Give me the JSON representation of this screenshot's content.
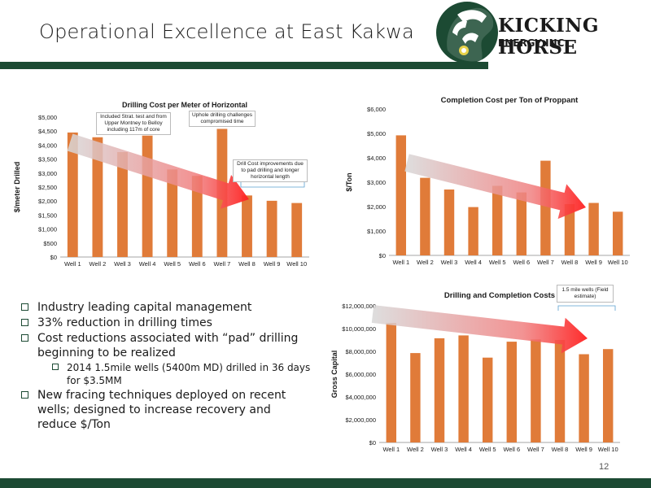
{
  "slide": {
    "title": "Operational Excellence at East Kakwa",
    "page_number": "12",
    "colors": {
      "bar": "#e07b39",
      "brand": "#1c4a33"
    }
  },
  "logo": {
    "line1": "KICKING HORSE",
    "line2": "ENERGY INC."
  },
  "bullets": [
    {
      "text": "Industry leading capital management",
      "level": 1
    },
    {
      "text": "33% reduction in drilling times",
      "level": 1
    },
    {
      "text": "Cost reductions associated with “pad” drilling beginning to be realized",
      "level": 1
    },
    {
      "text": "2014 1.5mile wells (5400m MD) drilled in 36 days for $3.5MM",
      "level": 2
    },
    {
      "text": "New fracing techniques deployed on recent wells; designed to increase recovery and reduce $/Ton",
      "level": 1
    }
  ],
  "chart_data": [
    {
      "type": "bar",
      "title": "Drilling Cost per Meter of Horizontal",
      "ylabel": "$/meter Drilled",
      "xlabel": "",
      "categories": [
        "Well 1",
        "Well 2",
        "Well 3",
        "Well 4",
        "Well 5",
        "Well 6",
        "Well 7",
        "Well 8",
        "Well 9",
        "Well 10"
      ],
      "values": [
        4450,
        4280,
        3750,
        4340,
        3130,
        2900,
        4580,
        2200,
        2010,
        1930
      ],
      "ylim": [
        0,
        5000
      ],
      "yticks": [
        "$0",
        "$500",
        "$1,000",
        "$1,500",
        "$2,000",
        "$2,500",
        "$3,000",
        "$3,500",
        "$4,000",
        "$4,500",
        "$5,000"
      ],
      "annotations": [
        "Included Strat. test and  from Upper Montney to Belloy including 117m of core",
        "Uphole drilling challenges compromised time",
        "Drill Cost improvements due to pad drilling and longer horizontal length"
      ],
      "grid": false,
      "legend": "none"
    },
    {
      "type": "bar",
      "title": "Completion Cost per Ton of Proppant",
      "ylabel": "$/Ton",
      "xlabel": "",
      "categories": [
        "Well 1",
        "Well 2",
        "Well 3",
        "Well 4",
        "Well 5",
        "Well 6",
        "Well 7",
        "Well 8",
        "Well 9",
        "Well 10"
      ],
      "values": [
        4920,
        3180,
        2700,
        1980,
        2850,
        2580,
        3880,
        2100,
        2150,
        1790
      ],
      "ylim": [
        0,
        6000
      ],
      "yticks": [
        "$0",
        "$1,000",
        "$2,000",
        "$3,000",
        "$4,000",
        "$5,000",
        "$6,000"
      ],
      "grid": false,
      "legend": "none"
    },
    {
      "type": "bar",
      "title": "Drilling and Completion Costs",
      "ylabel": "Gross Capital",
      "xlabel": "",
      "categories": [
        "Well 1",
        "Well 2",
        "Well 3",
        "Well 4",
        "Well 5",
        "Well 6",
        "Well 7",
        "Well 8",
        "Well 9",
        "Well 10"
      ],
      "values": [
        10500000,
        7850000,
        9150000,
        9400000,
        7450000,
        8850000,
        9050000,
        9000000,
        7750000,
        8200000
      ],
      "ylim": [
        0,
        12000000
      ],
      "yticks": [
        "$0",
        "$2,000,000",
        "$4,000,000",
        "$6,000,000",
        "$8,000,000",
        "$10,000,000",
        "$12,000,000"
      ],
      "annotations": [
        "1.5 mile wells (Field estimate)"
      ],
      "grid": false,
      "legend": "none"
    }
  ]
}
